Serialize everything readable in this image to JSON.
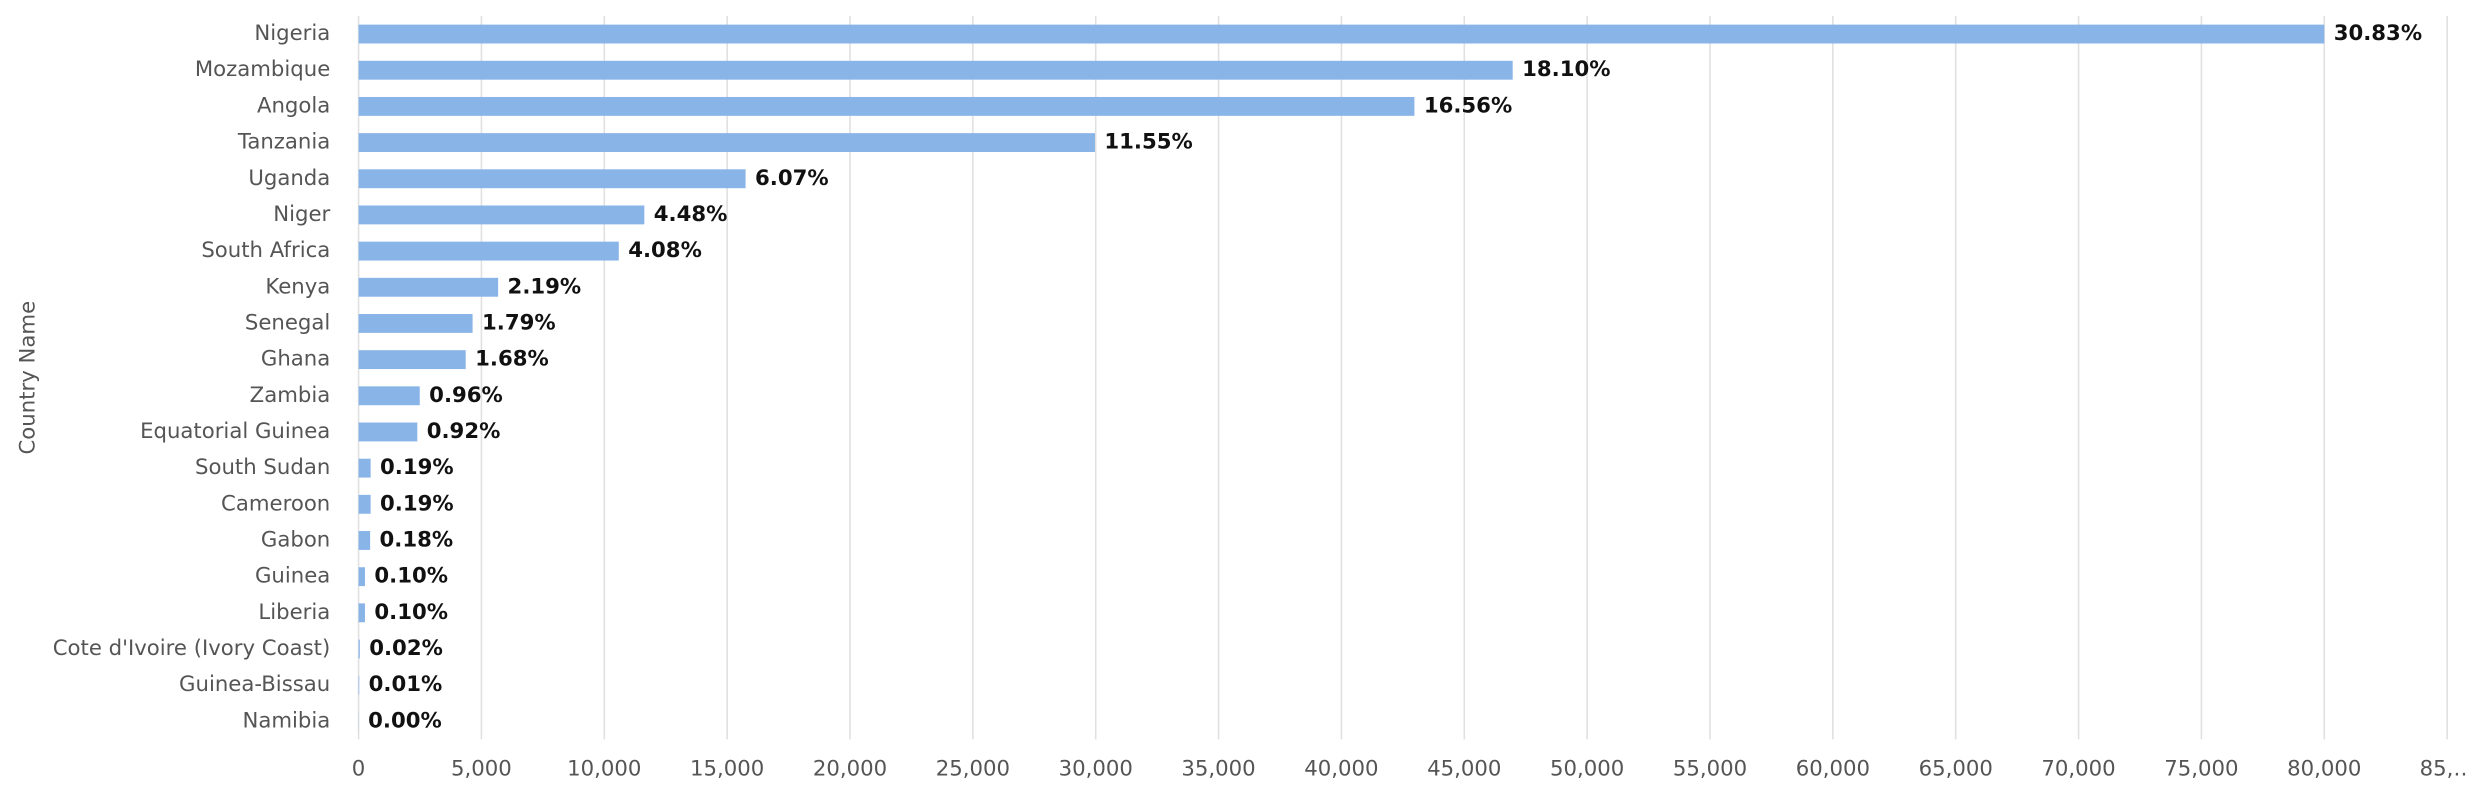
{
  "chart_data": {
    "type": "bar",
    "orientation": "horizontal",
    "y_axis_label": "Country Name",
    "categories": [
      "Nigeria",
      "Mozambique",
      "Angola",
      "Tanzania",
      "Uganda",
      "Niger",
      "South Africa",
      "Kenya",
      "Senegal",
      "Ghana",
      "Zambia",
      "Equatorial Guinea",
      "South Sudan",
      "Cameroon",
      "Gabon",
      "Guinea",
      "Liberia",
      "Cote d'Ivoire (Ivory Coast)",
      "Guinea-Bissau",
      "Namibia"
    ],
    "values": [
      80000,
      46970,
      42970,
      29970,
      15750,
      11630,
      10590,
      5680,
      4640,
      4360,
      2490,
      2390,
      490,
      490,
      470,
      260,
      260,
      50,
      26,
      5
    ],
    "value_labels": [
      "30.83%",
      "18.10%",
      "16.56%",
      "11.55%",
      "6.07%",
      "4.48%",
      "4.08%",
      "2.19%",
      "1.79%",
      "1.68%",
      "0.96%",
      "0.92%",
      "0.19%",
      "0.19%",
      "0.18%",
      "0.10%",
      "0.10%",
      "0.02%",
      "0.01%",
      "0.00%"
    ],
    "color": "#89b4e8",
    "xlim": [
      0,
      85000
    ],
    "xticks": [
      0,
      {
        "value": 5000,
        "label": "5,000"
      },
      {
        "value": 10000,
        "label": "10,000"
      },
      {
        "value": 15000,
        "label": "15,000"
      },
      {
        "value": 20000,
        "label": "20,000"
      },
      {
        "value": 25000,
        "label": "25,000"
      },
      {
        "value": 30000,
        "label": "30,000"
      },
      {
        "value": 35000,
        "label": "35,000"
      },
      {
        "value": 40000,
        "label": "40,000"
      },
      {
        "value": 45000,
        "label": "45,000"
      },
      {
        "value": 50000,
        "label": "50,000"
      },
      {
        "value": 55000,
        "label": "55,000"
      },
      {
        "value": 60000,
        "label": "60,000"
      },
      {
        "value": 65000,
        "label": "65,000"
      },
      {
        "value": 70000,
        "label": "70,000"
      },
      {
        "value": 75000,
        "label": "75,000"
      },
      {
        "value": 80000,
        "label": "80,000"
      },
      {
        "value": 85000,
        "label": "85,…"
      }
    ],
    "grid": true
  }
}
